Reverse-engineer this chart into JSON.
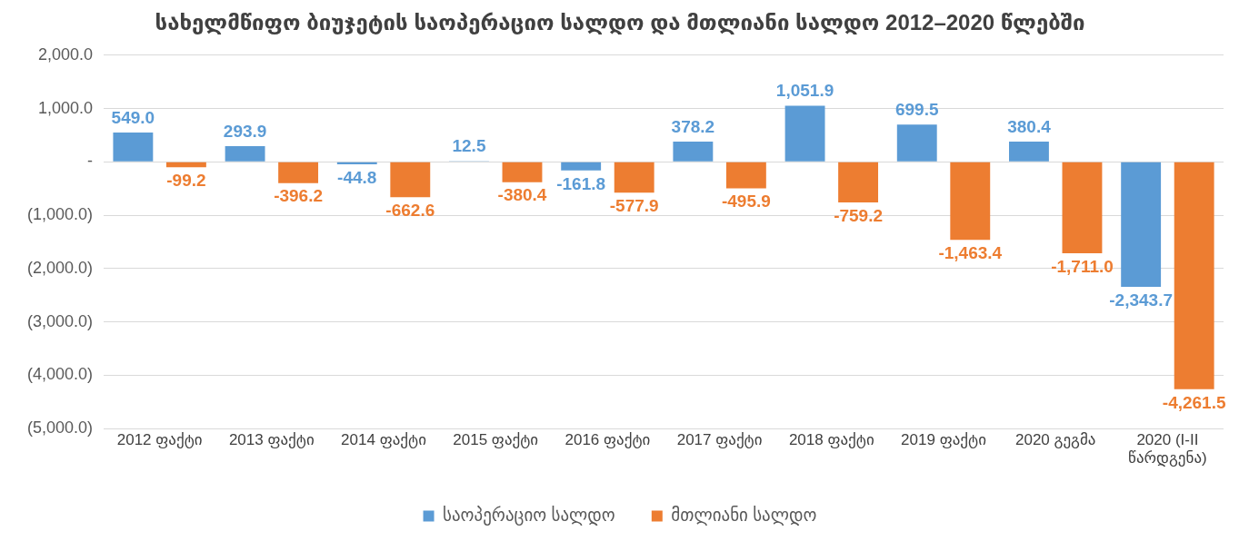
{
  "chart_data": {
    "type": "bar",
    "title": "სახელმწიფო ბიუჯეტის საოპერაციო სალდო და მთლიანი სალდო 2012–2020 წლებში",
    "categories": [
      "2012 ფაქტი",
      "2013 ფაქტი",
      "2014 ფაქტი",
      "2015 ფაქტი",
      "2016 ფაქტი",
      "2017 ფაქტი",
      "2018 ფაქტი",
      "2019 ფაქტი",
      "2020 გეგმა",
      "2020 (I-II წარდგენა)"
    ],
    "series": [
      {
        "name": "საოპერაციო სალდო",
        "color": "#5b9bd5",
        "values": [
          549.0,
          293.9,
          -44.8,
          12.5,
          -161.8,
          378.2,
          1051.9,
          699.5,
          380.4,
          -2343.7
        ],
        "value_labels": [
          "549.0",
          "293.9",
          "-44.8",
          "12.5",
          "-161.8",
          "378.2",
          "1,051.9",
          "699.5",
          "380.4",
          "-2,343.7"
        ]
      },
      {
        "name": "მთლიანი სალდო",
        "color": "#ed7d31",
        "values": [
          -99.2,
          -396.2,
          -662.6,
          -380.4,
          -577.9,
          -495.9,
          -759.2,
          -1463.4,
          -1711.0,
          -4261.5
        ],
        "value_labels": [
          "-99.2",
          "-396.2",
          "-662.6",
          "-380.4",
          "-577.9",
          "-495.9",
          "-759.2",
          "-1,463.4",
          "-1,711.0",
          "-4,261.5"
        ]
      }
    ],
    "ylim": [
      -5000,
      2000
    ],
    "yticks": [
      {
        "value": 2000,
        "label": "2,000.0"
      },
      {
        "value": 1000,
        "label": "1,000.0"
      },
      {
        "value": 0,
        "label": "-"
      },
      {
        "value": -1000,
        "label": "(1,000.0)"
      },
      {
        "value": -2000,
        "label": "(2,000.0)"
      },
      {
        "value": -3000,
        "label": "(3,000.0)"
      },
      {
        "value": -4000,
        "label": "(4,000.0)"
      },
      {
        "value": -5000,
        "label": "(5,000.0)"
      }
    ],
    "grid": "y",
    "legend": "bottom"
  }
}
